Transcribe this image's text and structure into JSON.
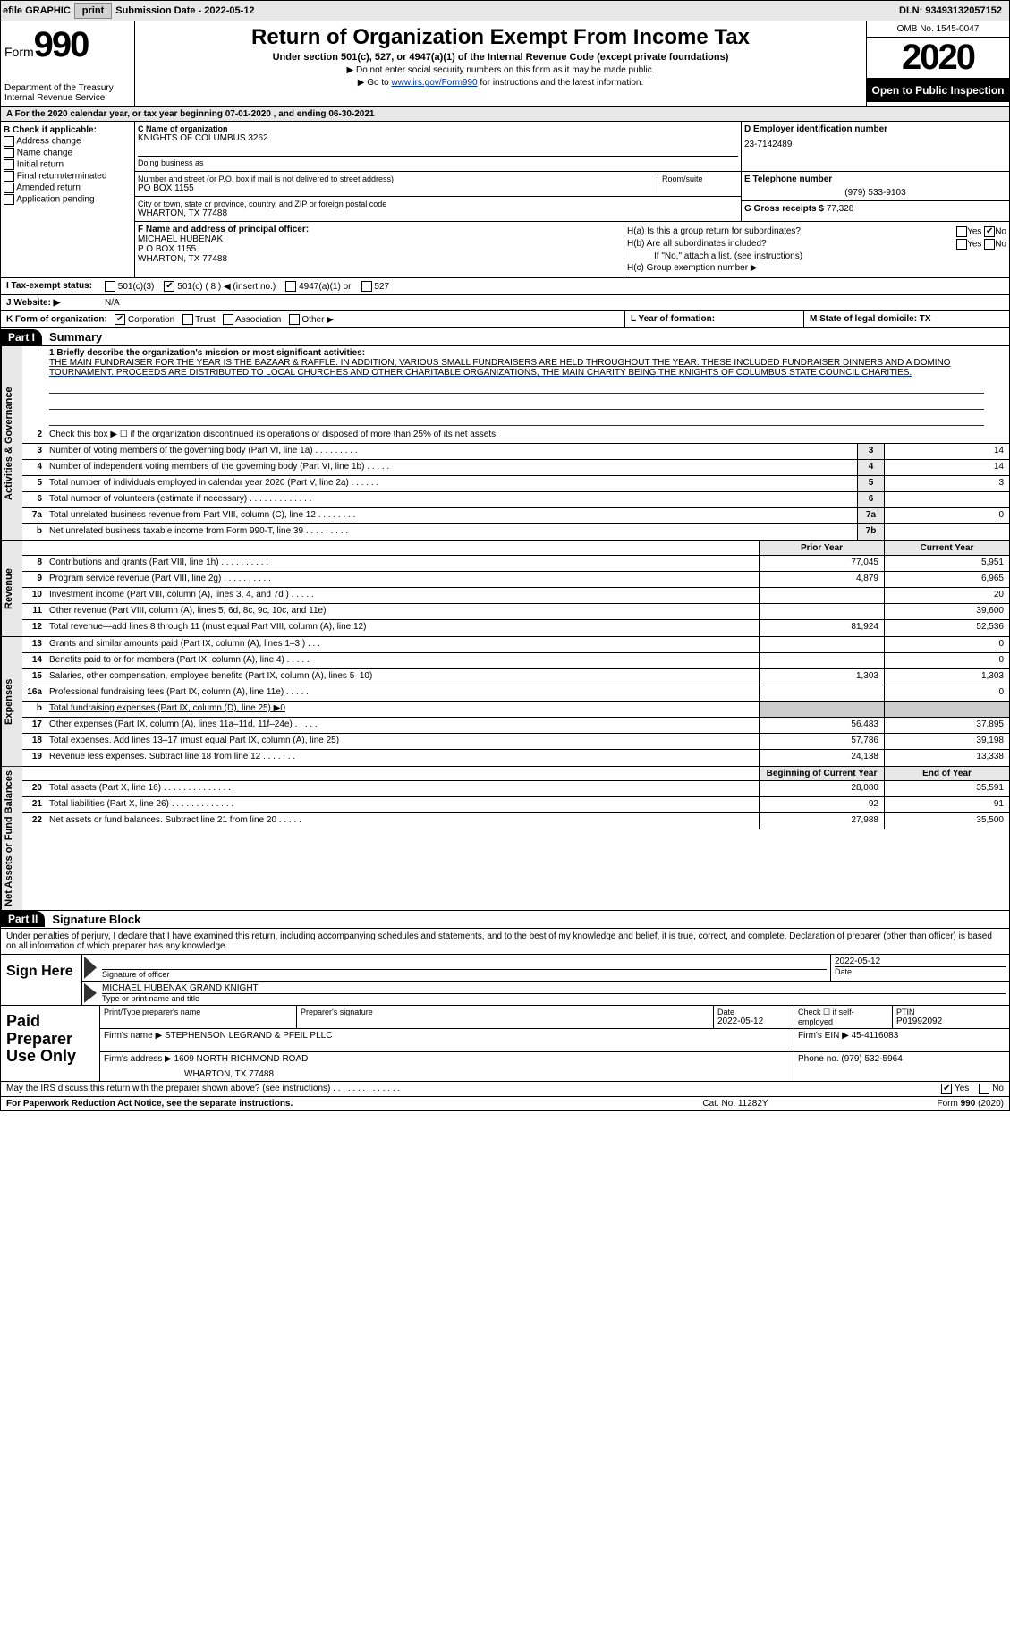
{
  "topbar": {
    "efile_label": "efile GRAPHIC",
    "print_btn": "print",
    "submission_label": "Submission Date - ",
    "submission_date": "2022-05-12",
    "dln_label": "DLN: ",
    "dln": "93493132057152"
  },
  "header": {
    "form_label": "Form",
    "form_no": "990",
    "dept": "Department of the Treasury",
    "irs": "Internal Revenue Service",
    "title": "Return of Organization Exempt From Income Tax",
    "subtitle": "Under section 501(c), 527, or 4947(a)(1) of the Internal Revenue Code (except private foundations)",
    "note1": "▶ Do not enter social security numbers on this form as it may be made public.",
    "note2_pre": "▶ Go to ",
    "note2_link": "www.irs.gov/Form990",
    "note2_post": " for instructions and the latest information.",
    "omb": "OMB No. 1545-0047",
    "year": "2020",
    "open": "Open to Public Inspection"
  },
  "period": {
    "text": "A For the 2020 calendar year, or tax year beginning 07-01-2020     , and ending 06-30-2021"
  },
  "boxB": {
    "title": "B Check if applicable:",
    "items": [
      "Address change",
      "Name change",
      "Initial return",
      "Final return/terminated",
      "Amended return",
      "Application pending"
    ]
  },
  "boxC": {
    "label": "C Name of organization",
    "name": "KNIGHTS OF COLUMBUS 3262",
    "dba_label": "Doing business as",
    "dba": "",
    "street_label": "Number and street (or P.O. box if mail is not delivered to street address)",
    "room_label": "Room/suite",
    "street": "PO BOX 1155",
    "city_label": "City or town, state or province, country, and ZIP or foreign postal code",
    "city": "WHARTON, TX  77488"
  },
  "boxD": {
    "label": "D Employer identification number",
    "val": "23-7142489"
  },
  "boxE": {
    "label": "E Telephone number",
    "val": "(979) 533-9103"
  },
  "boxG": {
    "label": "G Gross receipts $ ",
    "val": "77,328"
  },
  "boxF": {
    "label": "F  Name and address of principal officer:",
    "name": "MICHAEL HUBENAK",
    "addr1": "P O BOX 1155",
    "addr2": "WHARTON, TX  77488"
  },
  "boxH": {
    "a": "H(a)  Is this a group return for subordinates?",
    "b": "H(b)  Are all subordinates included?",
    "b2": "If \"No,\" attach a list. (see instructions)",
    "c": "H(c)  Group exemption number ▶",
    "yes": "Yes",
    "no": "No"
  },
  "rowI": {
    "label": "I  Tax-exempt status:",
    "opts": [
      "501(c)(3)",
      "501(c) ( 8 ) ◀ (insert no.)",
      "4947(a)(1) or",
      "527"
    ],
    "checked_idx": 1
  },
  "rowJ": {
    "label": "J  Website: ▶",
    "val": "N/A"
  },
  "rowK": {
    "label": "K Form of organization:",
    "opts": [
      "Corporation",
      "Trust",
      "Association",
      "Other ▶"
    ],
    "checked_idx": 0,
    "L": "L Year of formation:",
    "M": "M State of legal domicile: TX"
  },
  "part1": {
    "label": "Part I",
    "title": "Summary",
    "line1_label": "1  Briefly describe the organization's mission or most significant activities:",
    "mission": "THE MAIN FUNDRAISER FOR THE YEAR IS THE BAZAAR & RAFFLE. IN ADDITION, VARIOUS SMALL FUNDRAISERS ARE HELD THROUGHOUT THE YEAR. THESE INCLUDED FUNDRAISER DINNERS AND A DOMINO TOURNAMENT. PROCEEDS ARE DISTRIBUTED TO LOCAL CHURCHES AND OTHER CHARITABLE ORGANIZATIONS, THE MAIN CHARITY BEING THE KNIGHTS OF COLUMBUS STATE COUNCIL CHARITIES.",
    "gov_label": "Activities & Governance",
    "rev_label": "Revenue",
    "exp_label": "Expenses",
    "net_label": "Net Assets or Fund Balances",
    "lines_gov": [
      {
        "n": "2",
        "t": "Check this box ▶ ☐ if the organization discontinued its operations or disposed of more than 25% of its net assets."
      },
      {
        "n": "3",
        "t": "Number of voting members of the governing body (Part VI, line 1a)   .   .   .   .   .   .   .   .   .",
        "box": "3",
        "v": "14"
      },
      {
        "n": "4",
        "t": "Number of independent voting members of the governing body (Part VI, line 1b)   .   .   .   .   .",
        "box": "4",
        "v": "14"
      },
      {
        "n": "5",
        "t": "Total number of individuals employed in calendar year 2020 (Part V, line 2a)   .   .   .   .   .   .",
        "box": "5",
        "v": "3"
      },
      {
        "n": "6",
        "t": "Total number of volunteers (estimate if necessary)   .   .   .   .   .   .   .   .   .   .   .   .   .",
        "box": "6",
        "v": ""
      },
      {
        "n": "7a",
        "t": "Total unrelated business revenue from Part VIII, column (C), line 12   .   .   .   .   .   .   .   .",
        "box": "7a",
        "v": "0"
      },
      {
        "n": "b",
        "t": "Net unrelated business taxable income from Form 990-T, line 39   .   .   .   .   .   .   .   .   .",
        "box": "7b",
        "v": ""
      }
    ],
    "col_prior": "Prior Year",
    "col_curr": "Current Year",
    "lines_rev": [
      {
        "n": "8",
        "t": "Contributions and grants (Part VIII, line 1h)   .   .   .   .   .   .   .   .   .   .",
        "p": "77,045",
        "c": "5,951"
      },
      {
        "n": "9",
        "t": "Program service revenue (Part VIII, line 2g)   .   .   .   .   .   .   .   .   .   .",
        "p": "4,879",
        "c": "6,965"
      },
      {
        "n": "10",
        "t": "Investment income (Part VIII, column (A), lines 3, 4, and 7d )   .   .   .   .   .",
        "p": "",
        "c": "20"
      },
      {
        "n": "11",
        "t": "Other revenue (Part VIII, column (A), lines 5, 6d, 8c, 9c, 10c, and 11e)",
        "p": "",
        "c": "39,600"
      },
      {
        "n": "12",
        "t": "Total revenue—add lines 8 through 11 (must equal Part VIII, column (A), line 12)",
        "p": "81,924",
        "c": "52,536"
      }
    ],
    "lines_exp": [
      {
        "n": "13",
        "t": "Grants and similar amounts paid (Part IX, column (A), lines 1–3 )   .   .   .",
        "p": "",
        "c": "0"
      },
      {
        "n": "14",
        "t": "Benefits paid to or for members (Part IX, column (A), line 4)   .   .   .   .   .",
        "p": "",
        "c": "0"
      },
      {
        "n": "15",
        "t": "Salaries, other compensation, employee benefits (Part IX, column (A), lines 5–10)",
        "p": "1,303",
        "c": "1,303"
      },
      {
        "n": "16a",
        "t": "Professional fundraising fees (Part IX, column (A), line 11e)   .   .   .   .   .",
        "p": "",
        "c": "0"
      },
      {
        "n": "b",
        "t": "Total fundraising expenses (Part IX, column (D), line 25) ▶0",
        "noval": true
      },
      {
        "n": "17",
        "t": "Other expenses (Part IX, column (A), lines 11a–11d, 11f–24e)   .   .   .   .   .",
        "p": "56,483",
        "c": "37,895"
      },
      {
        "n": "18",
        "t": "Total expenses. Add lines 13–17 (must equal Part IX, column (A), line 25)",
        "p": "57,786",
        "c": "39,198"
      },
      {
        "n": "19",
        "t": "Revenue less expenses. Subtract line 18 from line 12   .   .   .   .   .   .   .",
        "p": "24,138",
        "c": "13,338"
      }
    ],
    "col_beg": "Beginning of Current Year",
    "col_end": "End of Year",
    "lines_net": [
      {
        "n": "20",
        "t": "Total assets (Part X, line 16)   .   .   .   .   .   .   .   .   .   .   .   .   .   .",
        "p": "28,080",
        "c": "35,591"
      },
      {
        "n": "21",
        "t": "Total liabilities (Part X, line 26)   .   .   .   .   .   .   .   .   .   .   .   .   .",
        "p": "92",
        "c": "91"
      },
      {
        "n": "22",
        "t": "Net assets or fund balances. Subtract line 21 from line 20   .   .   .   .   .",
        "p": "27,988",
        "c": "35,500"
      }
    ]
  },
  "part2": {
    "label": "Part II",
    "title": "Signature Block",
    "decl": "Under penalties of perjury, I declare that I have examined this return, including accompanying schedules and statements, and to the best of my knowledge and belief, it is true, correct, and complete. Declaration of preparer (other than officer) is based on all information of which preparer has any knowledge.",
    "sign_here": "Sign Here",
    "sig_officer_lbl": "Signature of officer",
    "sig_date": "2022-05-12",
    "date_lbl": "Date",
    "name_title": "MICHAEL HUBENAK GRAND KNIGHT",
    "name_title_lbl": "Type or print name and title"
  },
  "paid": {
    "label": "Paid Preparer Use Only",
    "h_print": "Print/Type preparer's name",
    "h_sig": "Preparer's signature",
    "h_date": "Date",
    "date": "2022-05-12",
    "h_check": "Check ☐ if self-employed",
    "h_ptin": "PTIN",
    "ptin": "P01992092",
    "firm_name_lbl": "Firm's name      ▶",
    "firm_name": "STEPHENSON LEGRAND & PFEIL PLLC",
    "firm_ein_lbl": "Firm's EIN ▶",
    "firm_ein": "45-4116083",
    "firm_addr_lbl": "Firm's address ▶",
    "firm_addr1": "1609 NORTH RICHMOND ROAD",
    "firm_addr2": "WHARTON, TX  77488",
    "phone_lbl": "Phone no. ",
    "phone": "(979) 532-5964"
  },
  "discuss": {
    "q": "May the IRS discuss this return with the preparer shown above? (see instructions)   .   .   .   .   .   .   .   .   .   .   .   .   .   .",
    "yes": "Yes",
    "no": "No"
  },
  "footer": {
    "l": "For Paperwork Reduction Act Notice, see the separate instructions.",
    "m": "Cat. No. 11282Y",
    "r": "Form 990 (2020)"
  }
}
